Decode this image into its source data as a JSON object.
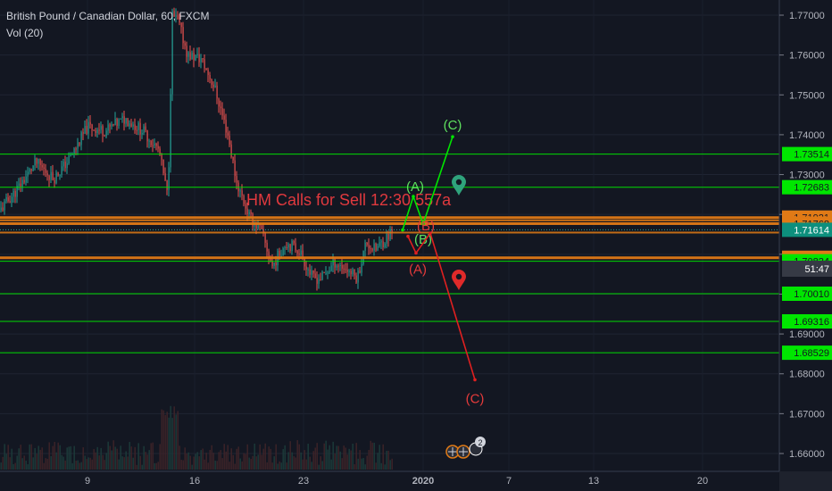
{
  "header": {
    "symbol_title": "British Pound / Canadian Dollar, 60, FXCM",
    "volume_label": "Vol (20)"
  },
  "chart_data": {
    "type": "candlestick",
    "title": "British Pound / Canadian Dollar, 60, FXCM",
    "indicator": "Vol (20)",
    "ylim": [
      1.655,
      1.775
    ],
    "y_ticks": [
      1.77,
      1.76,
      1.75,
      1.74,
      1.73,
      1.72,
      1.71,
      1.7,
      1.69,
      1.68,
      1.67,
      1.66
    ],
    "y_tick_labels": [
      "1.77000",
      "1.76000",
      "1.75000",
      "1.74000",
      "1.73000",
      "1.72000",
      "1.71000",
      "1.70000",
      "1.69000",
      "1.68000",
      "1.67000",
      "1.66000"
    ],
    "x_tick_labels": [
      "9",
      "16",
      "23",
      "2020",
      "7",
      "13",
      "20"
    ],
    "annotation_text": "HM Calls for Sell 12:30 557a",
    "horizontal_levels": [
      {
        "price": 1.73514,
        "label": "1.73514",
        "color": "#00e600"
      },
      {
        "price": 1.72683,
        "label": "1.72683",
        "color": "#00e600"
      },
      {
        "price": 1.71921,
        "label": "1.71921",
        "color": "#e07a16"
      },
      {
        "price": 1.71768,
        "label": "1.71768",
        "color": "#e07a16"
      },
      {
        "price": 1.71614,
        "label": "1.71614",
        "color": "#0d8f7d"
      },
      {
        "price": 1.70912,
        "label": "1.70912",
        "color": "#e07a16"
      },
      {
        "price": 1.70824,
        "label": "1.70824",
        "color": "#00e600"
      },
      {
        "price": 1.7001,
        "label": "1.70010",
        "color": "#00e600"
      },
      {
        "price": 1.69316,
        "label": "1.69316",
        "color": "#00e600"
      },
      {
        "price": 1.68529,
        "label": "1.68529",
        "color": "#00e600"
      }
    ],
    "countdown_label": "51:47",
    "bullish_wave": [
      {
        "label": "",
        "price": 1.7161
      },
      {
        "label": "(A)",
        "price": 1.7245
      },
      {
        "label": "(B)",
        "price": 1.7176
      },
      {
        "label": "(C)",
        "price": 1.7395
      }
    ],
    "bearish_wave": [
      {
        "label": "",
        "price": 1.7145
      },
      {
        "label": "(A)",
        "price": 1.7103
      },
      {
        "label": "(B)",
        "price": 1.7153
      },
      {
        "label": "(C)",
        "price": 1.6785
      }
    ],
    "marker_count_badge": "2",
    "colors": {
      "background": "#131722",
      "up_candle": "#26a69a",
      "down_candle": "#ef5350",
      "bull_path": "#00e600",
      "bear_path": "#e02020",
      "bull_label": "#5fe15f",
      "bear_label": "#e63b3b",
      "bull_marker": "#2fa37c",
      "bear_marker": "#e02a2a",
      "annotation": "#e0393e"
    }
  }
}
